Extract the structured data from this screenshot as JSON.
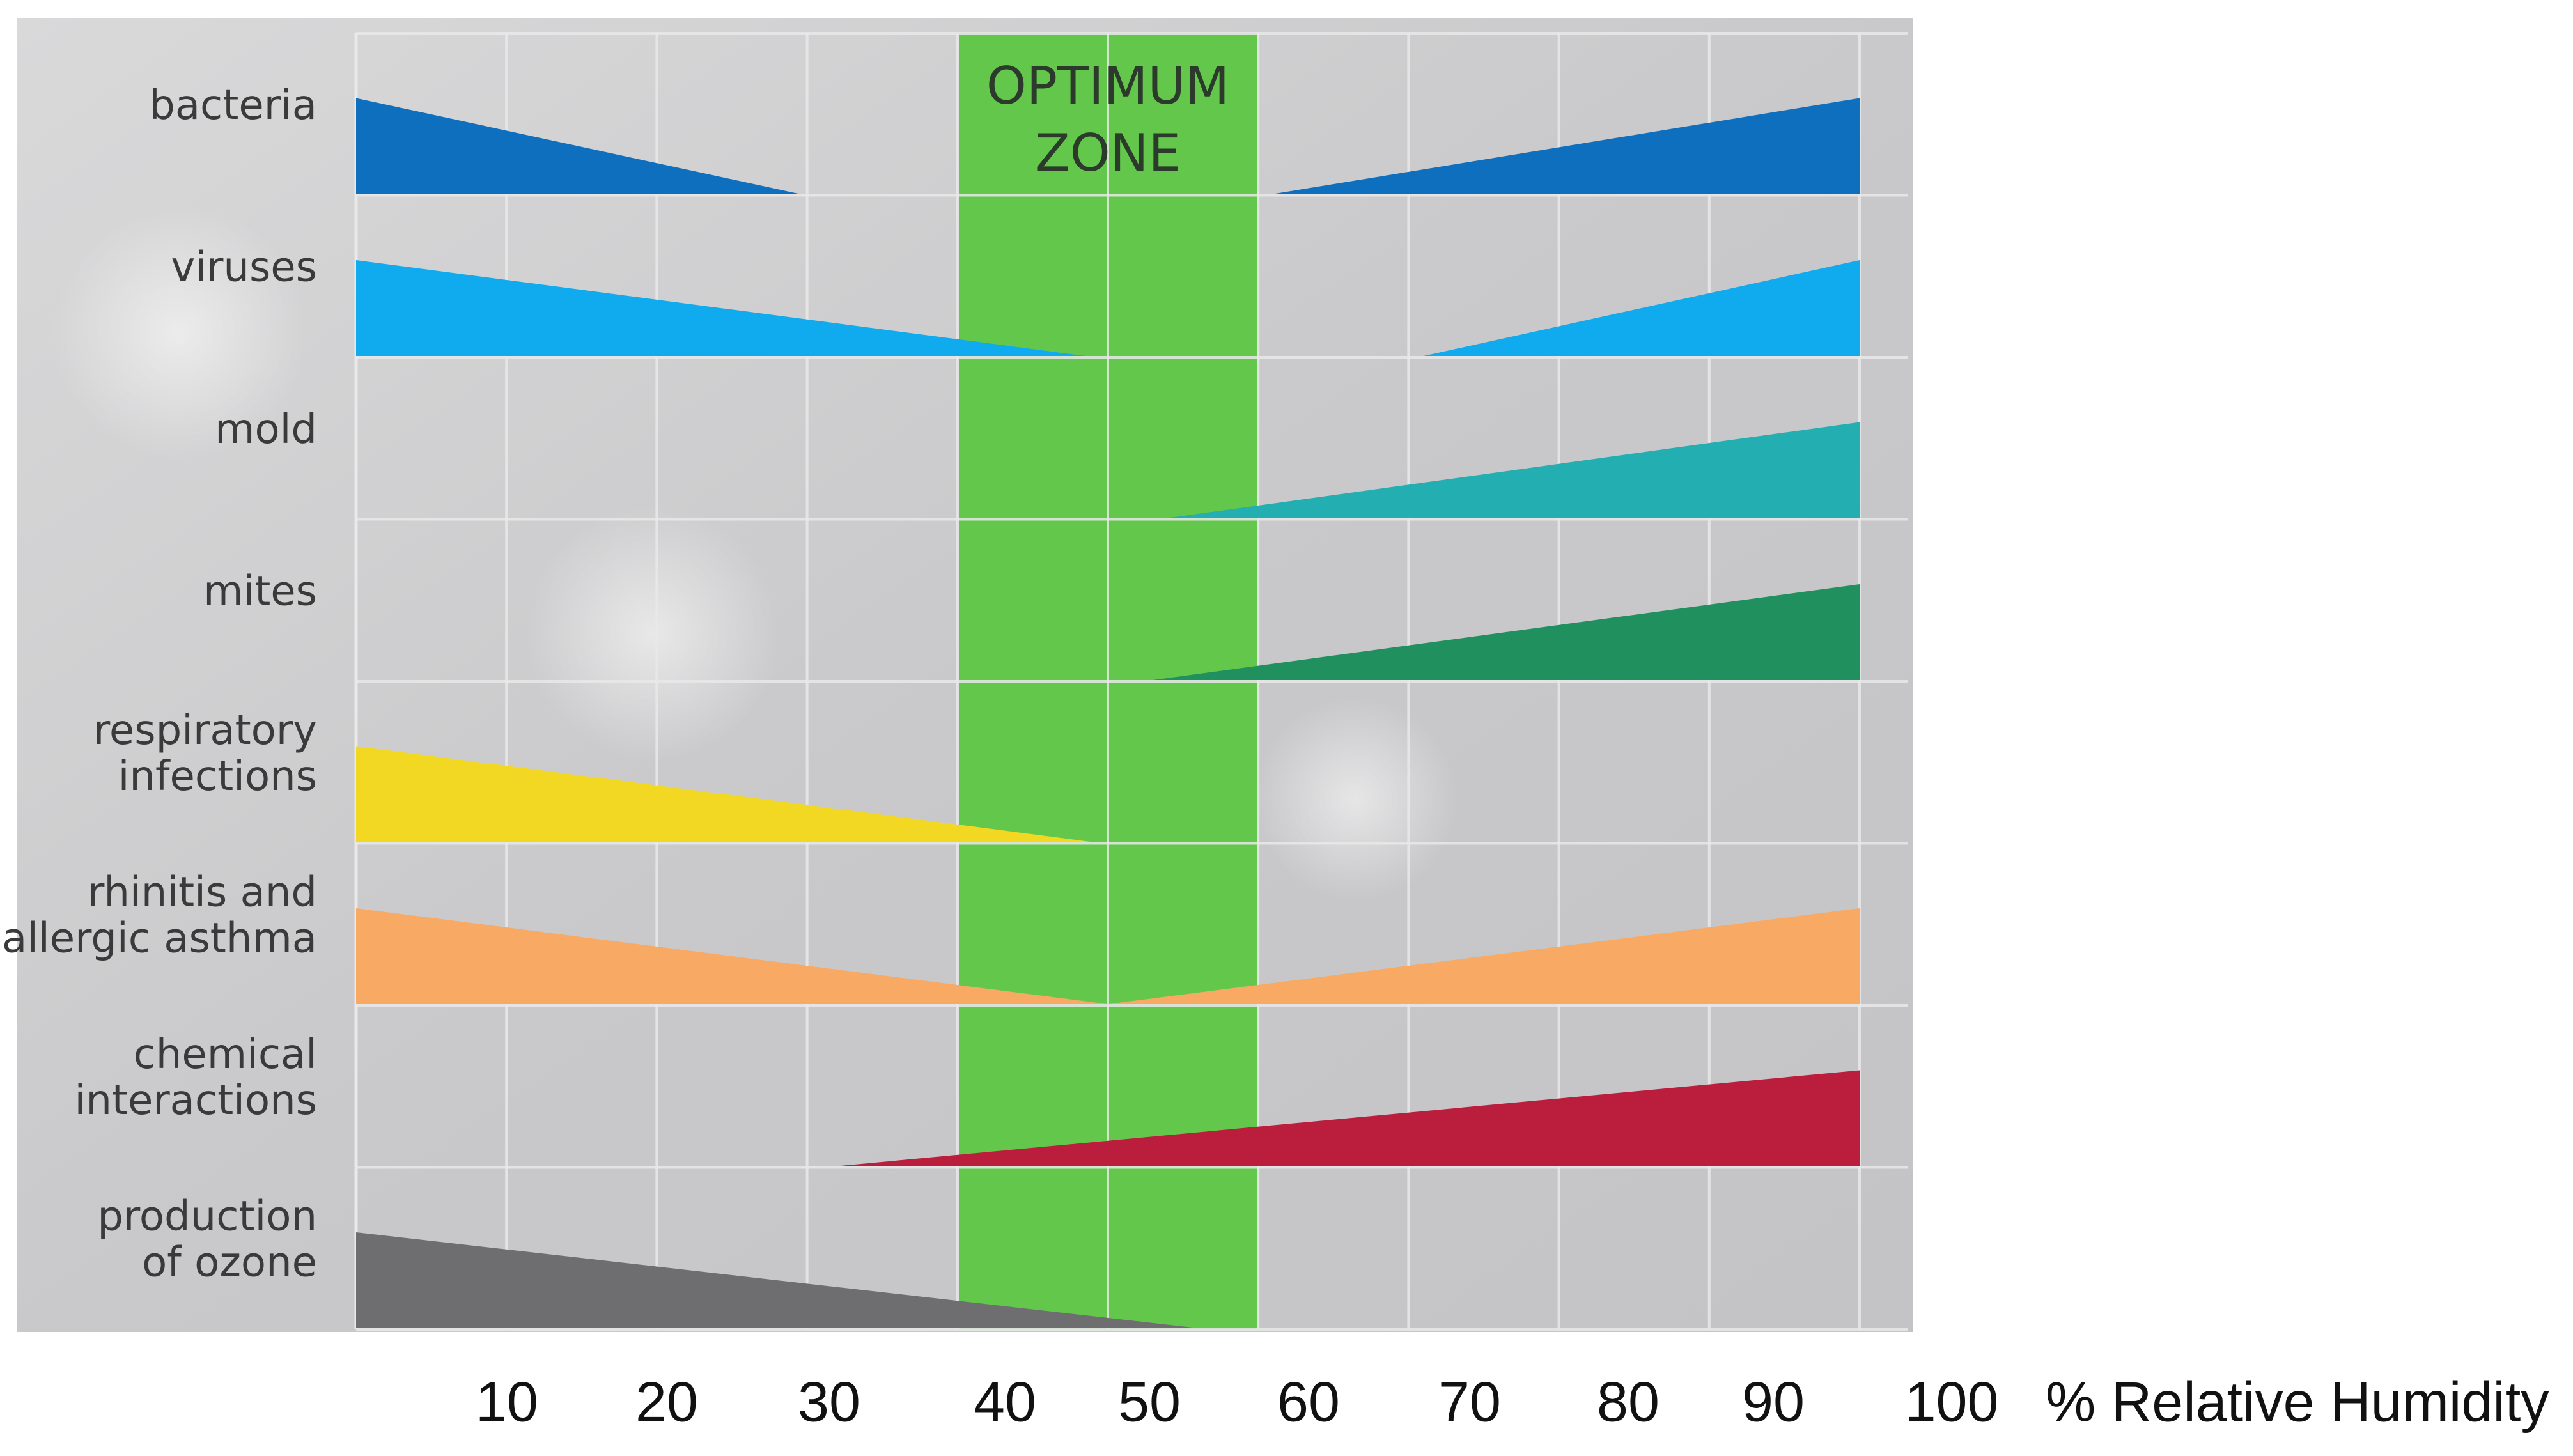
{
  "chart_data": {
    "type": "area",
    "title": "",
    "optimum_zone": {
      "label_line1": "OPTIMUM",
      "label_line2": "ZONE",
      "from": 40,
      "to": 60,
      "color": "#63c74b"
    },
    "x_axis": {
      "label": "% Relative Humidity",
      "ticks": [
        {
          "value": 10,
          "label": "10"
        },
        {
          "value": 20,
          "label": "20"
        },
        {
          "value": 30,
          "label": "30"
        },
        {
          "value": 40,
          "label": "40"
        },
        {
          "value": 50,
          "label": "50"
        },
        {
          "value": 60,
          "label": "60"
        },
        {
          "value": 70,
          "label": "70"
        },
        {
          "value": 80,
          "label": "80"
        },
        {
          "value": 90,
          "label": "90"
        },
        {
          "value": 100,
          "label": "100"
        }
      ],
      "range": [
        0,
        100
      ]
    },
    "series": [
      {
        "name": "bacteria",
        "label_lines": [
          "bacteria"
        ],
        "color": "#0e6fbf",
        "wedges": [
          {
            "from": 0,
            "to": 29.5,
            "thick_at": 0
          },
          {
            "from": 61,
            "to": 100,
            "thick_at": 100
          }
        ]
      },
      {
        "name": "viruses",
        "label_lines": [
          "viruses"
        ],
        "color": "#10aaee",
        "wedges": [
          {
            "from": 0,
            "to": 48.5,
            "thick_at": 0
          },
          {
            "from": 71,
            "to": 100,
            "thick_at": 100
          }
        ]
      },
      {
        "name": "mold",
        "label_lines": [
          "mold"
        ],
        "color": "#23aeb2",
        "wedges": [
          {
            "from": 54,
            "to": 100,
            "thick_at": 100
          }
        ]
      },
      {
        "name": "mites",
        "label_lines": [
          "mites"
        ],
        "color": "#20905f",
        "wedges": [
          {
            "from": 53,
            "to": 100,
            "thick_at": 100
          }
        ]
      },
      {
        "name": "respiratory infections",
        "label_lines": [
          "respiratory",
          "infections"
        ],
        "color": "#f2d822",
        "wedges": [
          {
            "from": 0,
            "to": 49,
            "thick_at": 0
          }
        ]
      },
      {
        "name": "rhinitis and allergic asthma",
        "label_lines": [
          "rhinitis and",
          "allergic asthma"
        ],
        "color": "#f8a963",
        "wedges": [
          {
            "from": 0,
            "to": 50,
            "thick_at": 0
          },
          {
            "from": 50,
            "to": 100,
            "thick_at": 100
          }
        ]
      },
      {
        "name": "chemical interactions",
        "label_lines": [
          "chemical",
          "interactions"
        ],
        "color": "#bb1d3d",
        "wedges": [
          {
            "from": 32,
            "to": 100,
            "thick_at": 100
          }
        ]
      },
      {
        "name": "production of ozone",
        "label_lines": [
          "production",
          "of ozone"
        ],
        "color": "#6e6e70",
        "wedges": [
          {
            "from": 0,
            "to": 56,
            "thick_at": 0
          }
        ]
      }
    ]
  }
}
